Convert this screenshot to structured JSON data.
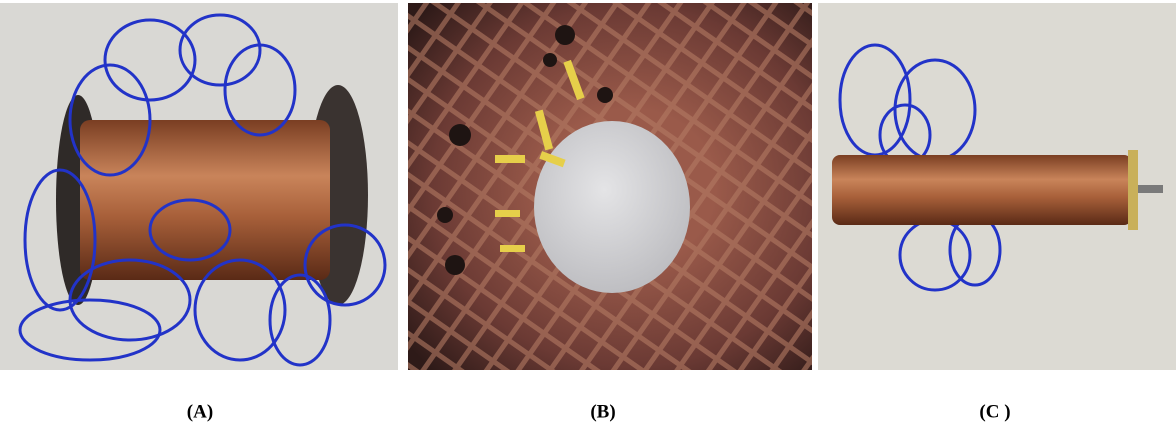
{
  "panels": [
    {
      "label": "(A)"
    },
    {
      "label": "(B)"
    },
    {
      "label": "(C )"
    }
  ]
}
